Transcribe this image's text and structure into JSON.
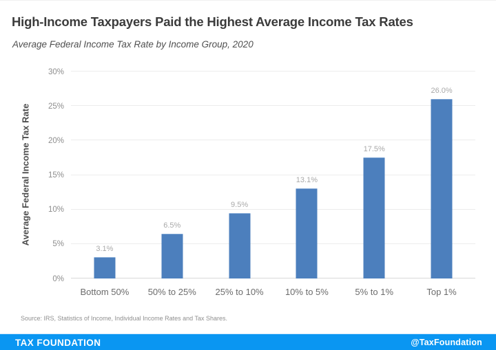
{
  "header": {
    "title": "High-Income Taxpayers Paid the Highest Average Income Tax Rates",
    "subtitle": "Average Federal Income Tax Rate by Income Group, 2020"
  },
  "chart_data": {
    "type": "bar",
    "title": "High-Income Taxpayers Paid the Highest Average Income Tax Rates",
    "subtitle": "Average Federal Income Tax Rate by Income Group, 2020",
    "categories": [
      "Bottom 50%",
      "50% to 25%",
      "25% to 10%",
      "10% to 5%",
      "5% to 1%",
      "Top 1%"
    ],
    "values": [
      3.1,
      6.5,
      9.5,
      13.1,
      17.5,
      26.0
    ],
    "value_labels": [
      "3.1%",
      "6.5%",
      "9.5%",
      "13.1%",
      "17.5%",
      "26.0%"
    ],
    "xlabel": "",
    "ylabel": "Average Federal Income Tax Rate",
    "ylim": [
      0,
      30
    ],
    "yticks": [
      0,
      5,
      10,
      15,
      20,
      25,
      30
    ],
    "ytick_labels": [
      "0%",
      "5%",
      "10%",
      "15%",
      "20%",
      "25%",
      "30%"
    ],
    "grid": true,
    "legend_position": "none",
    "bar_color": "#4c7fbd",
    "value_label_color": "#a9a9a9"
  },
  "source": "Source: IRS, Statistics of Income, Individual Income Rates and Tax Shares.",
  "footer": {
    "brand": "TAX FOUNDATION",
    "handle": "@TaxFoundation",
    "background_color": "#0a96f2"
  }
}
